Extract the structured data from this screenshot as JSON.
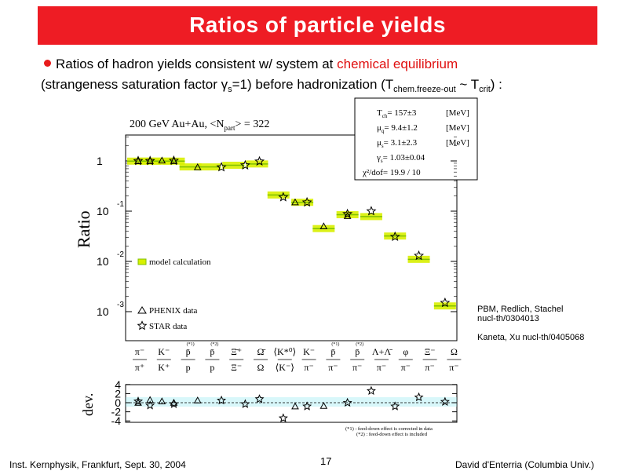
{
  "slide": {
    "title": "Ratios of particle yields",
    "bullet_pre": "Ratios of hadron yields consistent w/ system at ",
    "bullet_red": "chemical equilibrium",
    "line2_a": "(strangeness saturation factor ",
    "gamma": "γ",
    "gamma_sub": "s",
    "line2_b": "=1) before hadronization (T",
    "T_sub1": "chem.freeze-out",
    "tilde": " ~ T",
    "T_sub2": "crit",
    "line2_c": ") :",
    "references": [
      "PBM, Redlich, Stachel",
      "nucl-th/0304013",
      "Kaneta, Xu nucl-th/0405068"
    ],
    "footer_left": "Inst. Kernphysik, Frankfurt, Sept. 30, 2004",
    "page_number": "17",
    "footer_right": "David d'Enterria (Columbia Univ.)"
  },
  "colors": {
    "title_bar": "#ee1c24",
    "model_band": "#d8f000",
    "model_line": "#80c000",
    "accent_red": "#e01010",
    "dev_band": "#8fe8f0"
  },
  "chart_data": {
    "type": "scatter",
    "plot_title": "200 GeV Au+Au, <N",
    "plot_title_sub": "part",
    "plot_title_end": "> = 322",
    "ylabel": "Ratio",
    "dev_ylabel": "dev.",
    "log_y": true,
    "ylim": [
      0.0004,
      3
    ],
    "y_ticks": [
      {
        "value": 1,
        "base": "1",
        "exp": ""
      },
      {
        "value": 0.1,
        "base": "10",
        "exp": "-1"
      },
      {
        "value": 0.01,
        "base": "10",
        "exp": "-2"
      },
      {
        "value": 0.001,
        "base": "10",
        "exp": "-3"
      }
    ],
    "dev_ylim": [
      -4.5,
      4.5
    ],
    "dev_ticks": [
      "4",
      "2",
      "0",
      "-2",
      "-4"
    ],
    "fit_params": [
      {
        "label": "T",
        "sub": "ch",
        "value": "= 157±3",
        "unit": "[MeV]"
      },
      {
        "label": "μ",
        "sub": "q",
        "value": "= 9.4±1.2",
        "unit": "[MeV]"
      },
      {
        "label": "μ",
        "sub": "s",
        "value": "= 3.1±2.3",
        "unit": "[MeV]"
      },
      {
        "label": "γ",
        "sub": "s",
        "value": "= 1.03±0.04",
        "unit": ""
      },
      {
        "label": "χ²/dof",
        "sub": "",
        "value": "= 19.9 / 10",
        "unit": ""
      }
    ],
    "legend": {
      "model": "model calculation",
      "phenix": "PHENIX data",
      "star": "STAR data"
    },
    "categories": [
      {
        "num": "π⁻",
        "den": "π⁺",
        "note": ""
      },
      {
        "num": "K⁻",
        "den": "K⁺",
        "note": ""
      },
      {
        "num": "p̄",
        "den": "p",
        "note": "(*1)"
      },
      {
        "num": "p̄",
        "den": "p",
        "note": "(*2)"
      },
      {
        "num": "Ξ̄⁺",
        "den": "Ξ⁻",
        "note": ""
      },
      {
        "num": "Ω̄",
        "den": "Ω",
        "note": ""
      },
      {
        "num": "⟨K*⁰⟩",
        "den": "⟨K⁻⟩",
        "note": ""
      },
      {
        "num": "K⁻",
        "den": "π⁻",
        "note": ""
      },
      {
        "num": "p̄",
        "den": "π⁻",
        "note": "(*1)"
      },
      {
        "num": "p̄",
        "den": "π⁻",
        "note": "(*2)"
      },
      {
        "num": "Λ+Λ̄",
        "den": "π⁻",
        "note": ""
      },
      {
        "num": "φ",
        "den": "π⁻",
        "note": ""
      },
      {
        "num": "Ξ⁻",
        "den": "π⁻",
        "note": ""
      },
      {
        "num": "Ω",
        "den": "π⁻",
        "note": ""
      }
    ],
    "series": [
      {
        "name": "model calculation",
        "points": [
          {
            "x": 0,
            "y": 0.99
          },
          {
            "x": 0.5,
            "y": 0.99
          },
          {
            "x": 1,
            "y": 0.99
          },
          {
            "x": 1.5,
            "y": 0.99
          },
          {
            "x": 2.2,
            "y": 0.76
          },
          {
            "x": 3,
            "y": 0.76
          },
          {
            "x": 4,
            "y": 0.82
          },
          {
            "x": 5,
            "y": 0.87
          },
          {
            "x": 5.9,
            "y": 0.21
          },
          {
            "x": 6.9,
            "y": 0.15
          },
          {
            "x": 7.8,
            "y": 0.045
          },
          {
            "x": 8.8,
            "y": 0.085
          },
          {
            "x": 9.8,
            "y": 0.078
          },
          {
            "x": 10.8,
            "y": 0.032
          },
          {
            "x": 11.8,
            "y": 0.011
          },
          {
            "x": 12.9,
            "y": 0.0013
          }
        ]
      },
      {
        "name": "PHENIX data",
        "points": [
          {
            "x": 0,
            "y": 0.99
          },
          {
            "x": 0.5,
            "y": 1.0
          },
          {
            "x": 1,
            "y": 1.02
          },
          {
            "x": 1.5,
            "y": 1.0
          },
          {
            "x": 2.5,
            "y": 0.75
          },
          {
            "x": 6.6,
            "y": 0.15
          },
          {
            "x": 7.8,
            "y": 0.05
          },
          {
            "x": 8.8,
            "y": 0.08
          }
        ]
      },
      {
        "name": "STAR data",
        "points": [
          {
            "x": 0,
            "y": 1.0
          },
          {
            "x": 0.5,
            "y": 1.0
          },
          {
            "x": 1.5,
            "y": 1.01
          },
          {
            "x": 3.5,
            "y": 0.75
          },
          {
            "x": 4.5,
            "y": 0.82
          },
          {
            "x": 5.1,
            "y": 0.98
          },
          {
            "x": 6.1,
            "y": 0.19
          },
          {
            "x": 7.1,
            "y": 0.15
          },
          {
            "x": 8.8,
            "y": 0.088
          },
          {
            "x": 9.8,
            "y": 0.1
          },
          {
            "x": 10.8,
            "y": 0.031
          },
          {
            "x": 11.8,
            "y": 0.013
          },
          {
            "x": 12.9,
            "y": 0.0015
          }
        ]
      }
    ],
    "deviations": {
      "phenix": [
        {
          "x": 0,
          "y": 0
        },
        {
          "x": 0.5,
          "y": 0.6
        },
        {
          "x": 1,
          "y": 0.3
        },
        {
          "x": 1.5,
          "y": 0
        },
        {
          "x": 2.5,
          "y": 0.5
        },
        {
          "x": 6.6,
          "y": -0.8
        },
        {
          "x": 7.8,
          "y": -0.7
        }
      ],
      "star": [
        {
          "x": 0,
          "y": 0.3
        },
        {
          "x": 0.5,
          "y": -0.6
        },
        {
          "x": 1.5,
          "y": -0.3
        },
        {
          "x": 3.5,
          "y": 0.5
        },
        {
          "x": 4.5,
          "y": -0.3
        },
        {
          "x": 5.1,
          "y": 0.8
        },
        {
          "x": 6.1,
          "y": -3.4
        },
        {
          "x": 7.1,
          "y": -0.8
        },
        {
          "x": 8.8,
          "y": 0
        },
        {
          "x": 9.8,
          "y": 2.6
        },
        {
          "x": 10.8,
          "y": -0.8
        },
        {
          "x": 11.8,
          "y": 1.2
        },
        {
          "x": 12.9,
          "y": 0.2
        }
      ]
    },
    "footnotes": [
      "(*1) : feed-down effect is corrected in data",
      "(*2) : feed-down effect is included"
    ]
  }
}
